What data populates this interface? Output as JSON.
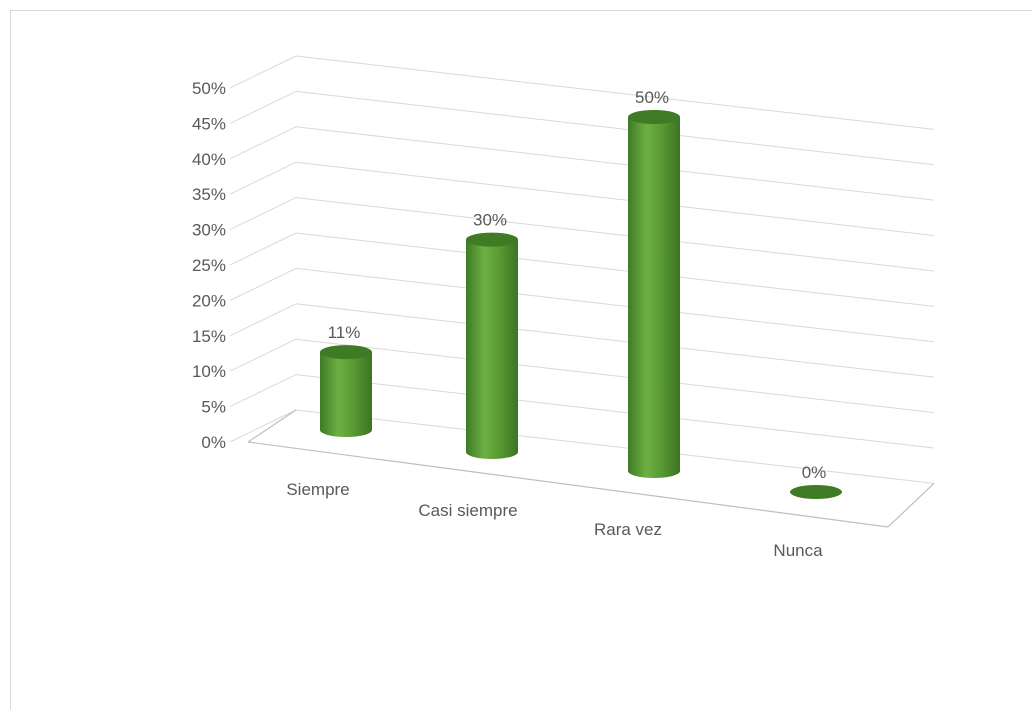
{
  "chart_data": {
    "type": "bar",
    "style": "3d-cylinder",
    "categories": [
      "Siempre",
      "Casi siempre",
      "Rara vez",
      "Nunca"
    ],
    "values": [
      11,
      30,
      50,
      0
    ],
    "data_labels": [
      "11%",
      "30%",
      "50%",
      "0%"
    ],
    "yticks": [
      "0%",
      "5%",
      "10%",
      "15%",
      "20%",
      "25%",
      "30%",
      "35%",
      "40%",
      "45%",
      "50%"
    ],
    "ylim": [
      0,
      50
    ],
    "grid": true,
    "legend": "none",
    "bar_color": "#5a9a32",
    "bar_top_color": "#3f7a25"
  }
}
